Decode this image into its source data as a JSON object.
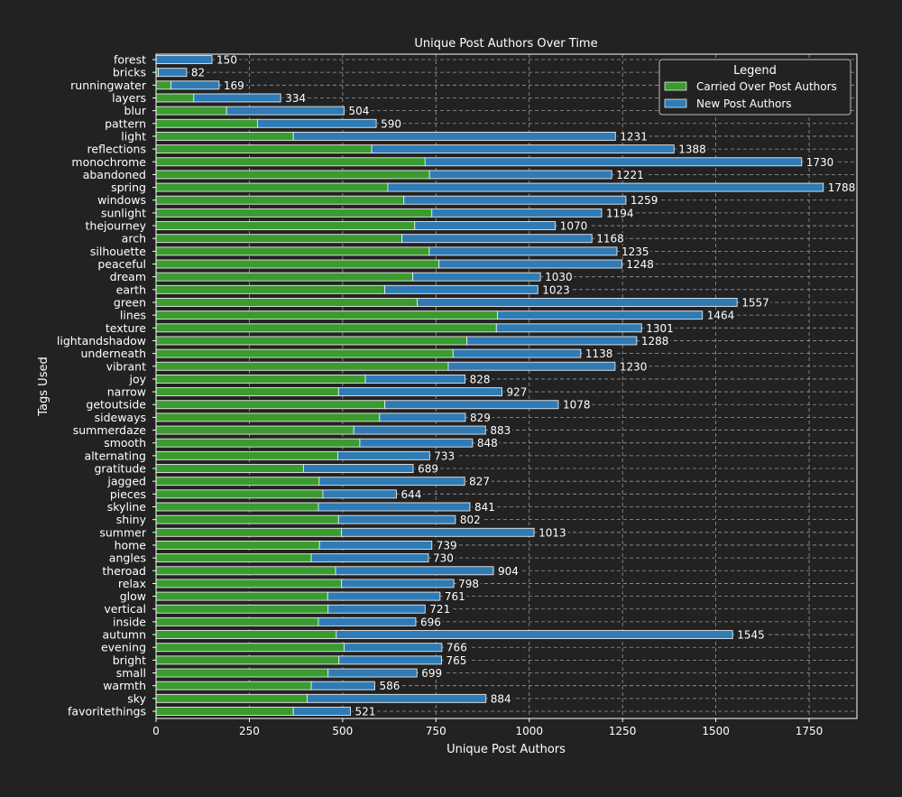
{
  "chart_data": {
    "type": "bar",
    "orientation": "horizontal",
    "stacked": true,
    "title": "Unique Post Authors Over Time",
    "xlabel": "Unique Post Authors",
    "ylabel": "Tags Used",
    "xlim": [
      0,
      1878
    ],
    "xticks": [
      0,
      250,
      500,
      750,
      1000,
      1250,
      1500,
      1750
    ],
    "grid": true,
    "legend": {
      "title": "Legend",
      "placement": "top-right"
    },
    "categories": [
      "forest",
      "bricks",
      "runningwater",
      "layers",
      "blur",
      "pattern",
      "light",
      "reflections",
      "monochrome",
      "abandoned",
      "spring",
      "windows",
      "sunlight",
      "thejourney",
      "arch",
      "silhouette",
      "peaceful",
      "dream",
      "earth",
      "green",
      "lines",
      "texture",
      "lightandshadow",
      "underneath",
      "vibrant",
      "joy",
      "narrow",
      "getoutside",
      "sideways",
      "summerdaze",
      "smooth",
      "alternating",
      "gratitude",
      "jagged",
      "pieces",
      "skyline",
      "shiny",
      "summer",
      "home",
      "angles",
      "theroad",
      "relax",
      "glow",
      "vertical",
      "inside",
      "autumn",
      "evening",
      "bright",
      "small",
      "warmth",
      "sky",
      "favoritethings"
    ],
    "series": [
      {
        "name": "Carried Over Post Authors",
        "color": "#3a9b2f",
        "values": [
          0,
          6,
          40,
          101,
          189,
          272,
          368,
          578,
          721,
          733,
          621,
          664,
          739,
          693,
          659,
          732,
          758,
          688,
          613,
          700,
          915,
          912,
          833,
          796,
          783,
          561,
          489,
          613,
          599,
          530,
          546,
          487,
          395,
          437,
          447,
          435,
          489,
          497,
          438,
          416,
          481,
          497,
          460,
          461,
          435,
          483,
          504,
          490,
          461,
          416,
          405,
          368
        ]
      },
      {
        "name": "New Post Authors",
        "color": "#2e7bb6",
        "values": [
          150,
          76,
          129,
          233,
          315,
          318,
          863,
          810,
          1009,
          488,
          1167,
          595,
          455,
          377,
          509,
          503,
          490,
          342,
          410,
          857,
          549,
          389,
          455,
          342,
          447,
          267,
          438,
          465,
          230,
          353,
          302,
          246,
          294,
          390,
          197,
          406,
          313,
          516,
          301,
          314,
          423,
          301,
          301,
          260,
          261,
          1062,
          262,
          275,
          238,
          170,
          479,
          153
        ]
      }
    ],
    "totals": [
      150,
      82,
      169,
      334,
      504,
      590,
      1231,
      1388,
      1730,
      1221,
      1788,
      1259,
      1194,
      1070,
      1168,
      1235,
      1248,
      1030,
      1023,
      1557,
      1464,
      1301,
      1288,
      1138,
      1230,
      828,
      927,
      1078,
      829,
      883,
      848,
      733,
      689,
      827,
      644,
      841,
      802,
      1013,
      739,
      730,
      904,
      798,
      761,
      721,
      696,
      1545,
      766,
      765,
      699,
      586,
      884,
      521
    ]
  }
}
